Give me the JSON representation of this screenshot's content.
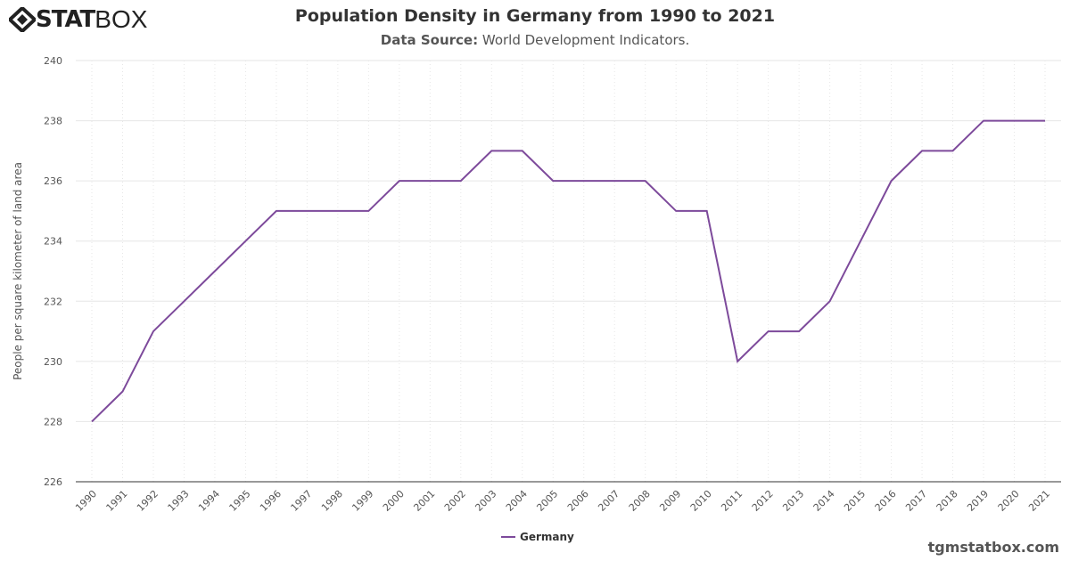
{
  "logo": {
    "text_bold": "STAT",
    "text_light": "BOX"
  },
  "header": {
    "title": "Population Density in Germany from 1990 to 2021",
    "source_label": "Data Source:",
    "source_value": "World Development Indicators."
  },
  "credit": "tgmstatbox.com",
  "chart_data": {
    "type": "line",
    "title": "Population Density in Germany from 1990 to 2021",
    "ylabel": "People per square kilometer of land area",
    "xlabel": "",
    "ylim": [
      226,
      240
    ],
    "yticks": [
      226,
      228,
      230,
      232,
      234,
      236,
      238,
      240
    ],
    "x": [
      "1990",
      "1991",
      "1992",
      "1993",
      "1994",
      "1995",
      "1996",
      "1997",
      "1998",
      "1999",
      "2000",
      "2001",
      "2002",
      "2003",
      "2004",
      "2005",
      "2006",
      "2007",
      "2008",
      "2009",
      "2010",
      "2011",
      "2012",
      "2013",
      "2014",
      "2015",
      "2016",
      "2017",
      "2018",
      "2019",
      "2020",
      "2021"
    ],
    "series": [
      {
        "name": "Germany",
        "color": "#7d4a9b",
        "values": [
          228,
          229,
          231,
          232,
          233,
          234,
          235,
          235,
          235,
          235,
          236,
          236,
          236,
          237,
          237,
          236,
          236,
          236,
          236,
          235,
          235,
          230,
          231,
          231,
          232,
          234,
          236,
          237,
          237,
          238,
          238,
          238
        ]
      }
    ],
    "grid": true,
    "legend": "bottom-center"
  }
}
